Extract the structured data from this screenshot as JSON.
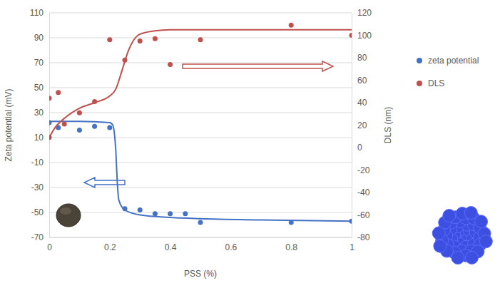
{
  "chart_data": {
    "type": "scatter",
    "xlabel": "PSS (%)",
    "ylabel": "Zeta potential (mV)",
    "y2label": "DLS (nm)",
    "xlim": [
      0,
      1
    ],
    "xticks": [
      0,
      0.2,
      0.4,
      0.6,
      0.8,
      1
    ],
    "ylim": [
      -70,
      110
    ],
    "yticks": [
      -70,
      -50,
      -30,
      -10,
      10,
      30,
      50,
      70,
      90,
      110
    ],
    "y2lim": [
      -80,
      120
    ],
    "y2ticks": [
      -80,
      -60,
      -40,
      -20,
      0,
      20,
      40,
      60,
      80,
      100,
      120
    ],
    "grid": true,
    "legend": "right",
    "series": [
      {
        "name": "zeta potential",
        "color": "#4472c4",
        "marker": "circle",
        "x": [
          0,
          0.03,
          0.1,
          0.15,
          0.2,
          0.25,
          0.3,
          0.35,
          0.4,
          0.45,
          0.5,
          0.8,
          1
        ],
        "values": [
          22,
          18,
          16,
          19,
          18,
          -47,
          -48,
          -51,
          -51,
          -51,
          -58,
          -58,
          -57
        ],
        "fit_x": [
          0,
          0.1,
          0.2,
          0.21,
          0.22,
          0.225,
          0.23,
          0.25,
          0.3,
          0.4,
          0.5,
          0.7,
          1
        ],
        "fit_values": [
          23,
          23,
          22,
          20,
          0,
          -25,
          -40,
          -48,
          -52,
          -54,
          -55,
          -56,
          -57
        ]
      },
      {
        "name": "DLS",
        "color": "#c0504d",
        "marker": "circle",
        "axis": "y2",
        "x": [
          0,
          0,
          0.03,
          0.05,
          0.1,
          0.15,
          0.2,
          0.25,
          0.3,
          0.35,
          0.4,
          0.5,
          0.8,
          1
        ],
        "values": [
          9,
          44,
          49,
          21,
          31,
          41,
          96,
          78,
          95,
          97,
          74,
          96,
          109,
          100
        ],
        "fit_x": [
          0,
          0.02,
          0.05,
          0.1,
          0.15,
          0.2,
          0.22,
          0.24,
          0.26,
          0.28,
          0.3,
          0.35,
          0.4,
          0.5,
          0.6,
          0.8,
          1
        ],
        "fit_values": [
          9,
          18,
          26,
          35,
          40,
          46,
          52,
          68,
          85,
          96,
          101,
          104,
          105,
          105,
          105,
          105,
          105
        ]
      }
    ]
  }
}
